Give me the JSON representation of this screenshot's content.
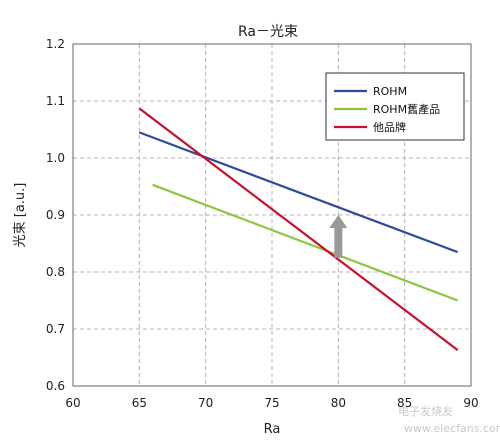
{
  "chart_data": {
    "type": "line",
    "title": "Ra－光束",
    "xlabel": "Ra",
    "ylabel": "光束 [a.u.]",
    "xlim": [
      60,
      90
    ],
    "ylim": [
      0.6,
      1.2
    ],
    "x_ticks": [
      60,
      65,
      70,
      75,
      80,
      85,
      90
    ],
    "y_ticks": [
      0.6,
      0.7,
      0.8,
      0.9,
      1.0,
      1.1,
      1.2
    ],
    "x_tick_labels": [
      "60",
      "65",
      "70",
      "75",
      "80",
      "85",
      "90"
    ],
    "y_tick_labels": [
      "0.6",
      "0.7",
      "0.8",
      "0.9",
      "1.0",
      "1.1",
      "1.2"
    ],
    "grid": true,
    "legend_position": "top-right",
    "series": [
      {
        "name": "ROHM",
        "color": "#2e4a9a",
        "x": [
          65,
          89
        ],
        "y": [
          1.045,
          0.835
        ]
      },
      {
        "name": "ROHM舊產品",
        "color": "#8cc63f",
        "x": [
          66,
          89
        ],
        "y": [
          0.953,
          0.75
        ]
      },
      {
        "name": "他品牌",
        "color": "#c8102e",
        "x": [
          65,
          89
        ],
        "y": [
          1.087,
          0.663
        ]
      }
    ],
    "annotations": [
      {
        "type": "arrow",
        "direction": "up",
        "x": 80,
        "y_from": 0.825,
        "y_to": 0.9,
        "color": "#999999"
      }
    ]
  },
  "watermark": {
    "text": "电子发烧友",
    "url": "www.elecfans.com"
  }
}
